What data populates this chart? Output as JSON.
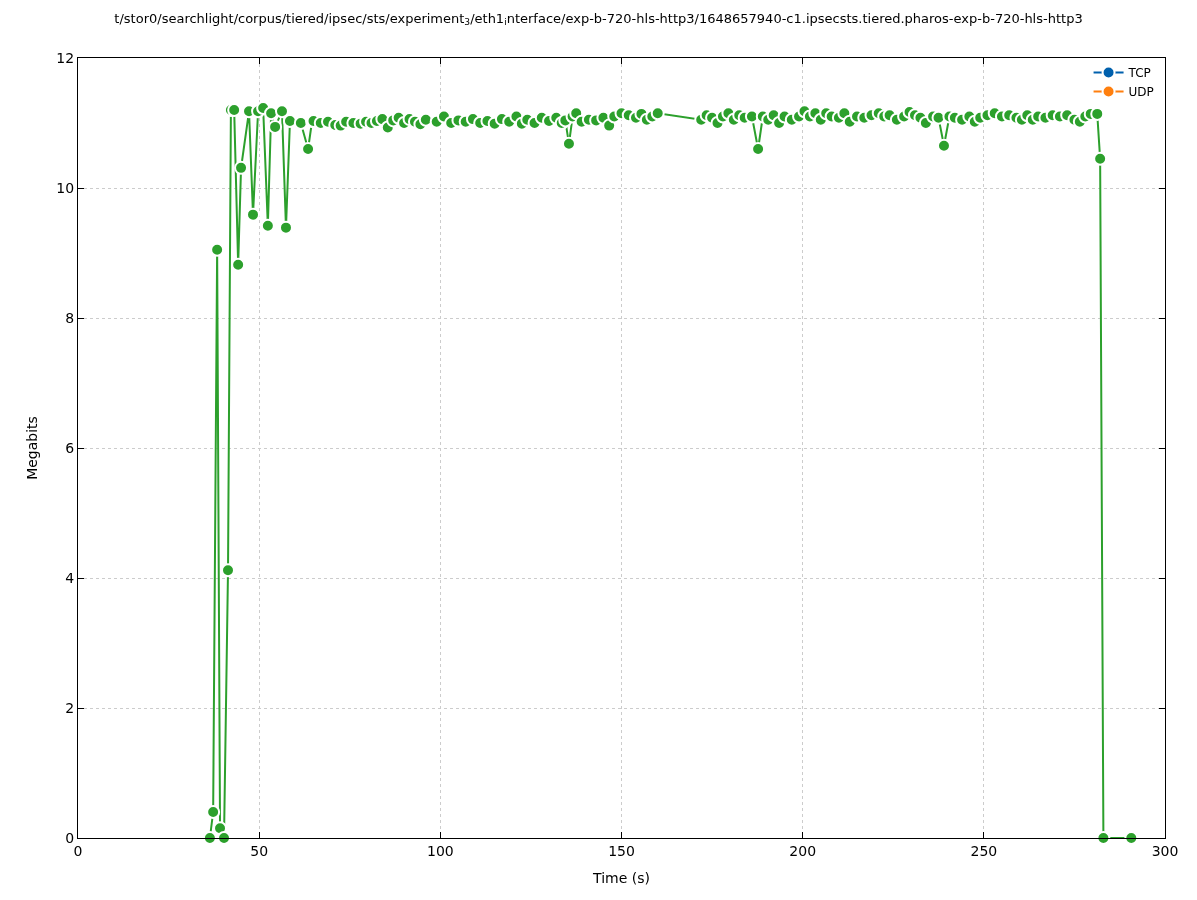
{
  "chart_data": {
    "type": "line",
    "title": "t/stor0/searchlight/corpus/tiered/ipsec/sts/experiment$_{3}$/eth1$_{i}$nterface/exp-b-720-hls-http3/1648657940-c1.ipsecsts.tiered.pharos-exp-b-720-hls-http3",
    "xlabel": "Time (s)",
    "ylabel": "Megabits",
    "xlim": [
      0,
      300
    ],
    "xticks": [
      0,
      50,
      100,
      150,
      200,
      250,
      300
    ],
    "ylim": [
      0,
      12
    ],
    "yticks": [
      0,
      2,
      4,
      6,
      8,
      10,
      12
    ],
    "grid": true,
    "legend": "top right",
    "marker": "circle",
    "line_style": "solid",
    "series": [
      {
        "name": "TCP",
        "color": "#0060ad"
      },
      {
        "name": "UDP",
        "color": "#ff7f0e"
      },
      {
        "color": "#2ca02c",
        "x": [
          36.4,
          37.3,
          38.4,
          39.2,
          40.3,
          41.4,
          42.2,
          43.1,
          44.2,
          45.0,
          47.2,
          48.3,
          49.7,
          51.1,
          52.4,
          53.3,
          54.4,
          56.3,
          57.4,
          58.5,
          61.5,
          63.5,
          64.6,
          65,
          67,
          69,
          71,
          72.5,
          74,
          76,
          78,
          79.5,
          81,
          82.5,
          84,
          85.5,
          87,
          88.5,
          90,
          91.5,
          93,
          94.5,
          96,
          99,
          101,
          103,
          105,
          107,
          109,
          111,
          113,
          115,
          117,
          119,
          121,
          122.5,
          124,
          126,
          128,
          130,
          132,
          133.5,
          134.5,
          135.5,
          136.5,
          137.5,
          139,
          141,
          143,
          145,
          146.6,
          148,
          150,
          152,
          154,
          155.5,
          157,
          158.5,
          160,
          172,
          173.5,
          175,
          176.5,
          178,
          179.5,
          181,
          182.5,
          184,
          186,
          187.7,
          189,
          190.5,
          192,
          193.5,
          195,
          197,
          199,
          200.5,
          202,
          203.5,
          205,
          206.5,
          208,
          210,
          211.5,
          213,
          215,
          217,
          219,
          221,
          222.5,
          224,
          226,
          228,
          229.5,
          231,
          232.5,
          234,
          236,
          237.5,
          239,
          240.5,
          242,
          244,
          246,
          247.5,
          249,
          251,
          253,
          255,
          257,
          259,
          260.5,
          262,
          263.5,
          265,
          267,
          269,
          271,
          273,
          275,
          276.5,
          278,
          279.5,
          281.3,
          282.1,
          283,
          290.7
        ],
        "values": [
          0,
          0.4,
          9.05,
          0.15,
          0,
          4.12,
          11.2,
          11.2,
          8.82,
          10.31,
          11.18,
          9.59,
          11.18,
          11.23,
          9.42,
          11.15,
          10.94,
          11.18,
          9.39,
          11.03,
          11.0,
          10.6,
          11.03,
          11.03,
          11.0,
          11.02,
          10.97,
          10.96,
          11.02,
          11.0,
          10.99,
          11.02,
          11.0,
          11.03,
          11.06,
          10.93,
          11.04,
          11.08,
          11.0,
          11.06,
          11.02,
          10.98,
          11.05,
          11.02,
          11.1,
          11.0,
          11.04,
          11.02,
          11.06,
          11.0,
          11.03,
          10.99,
          11.06,
          11.02,
          11.1,
          10.99,
          11.05,
          11.0,
          11.08,
          11.03,
          11.08,
          11.0,
          11.04,
          10.68,
          11.1,
          11.15,
          11.02,
          11.05,
          11.04,
          11.08,
          10.96,
          11.1,
          11.15,
          11.12,
          11.08,
          11.14,
          11.05,
          11.1,
          11.15,
          11.05,
          11.12,
          11.08,
          11.0,
          11.1,
          11.15,
          11.05,
          11.12,
          11.08,
          11.1,
          10.6,
          11.1,
          11.05,
          11.12,
          11.0,
          11.1,
          11.05,
          11.1,
          11.18,
          11.1,
          11.15,
          11.05,
          11.15,
          11.1,
          11.08,
          11.15,
          11.02,
          11.1,
          11.08,
          11.12,
          11.15,
          11.1,
          11.12,
          11.05,
          11.1,
          11.17,
          11.12,
          11.08,
          11.0,
          11.1,
          11.08,
          10.65,
          11.1,
          11.08,
          11.05,
          11.1,
          11.02,
          11.08,
          11.12,
          11.15,
          11.1,
          11.12,
          11.08,
          11.05,
          11.12,
          11.05,
          11.1,
          11.08,
          11.12,
          11.1,
          11.12,
          11.05,
          11.02,
          11.1,
          11.14,
          11.14,
          10.45,
          0,
          0
        ]
      }
    ]
  }
}
